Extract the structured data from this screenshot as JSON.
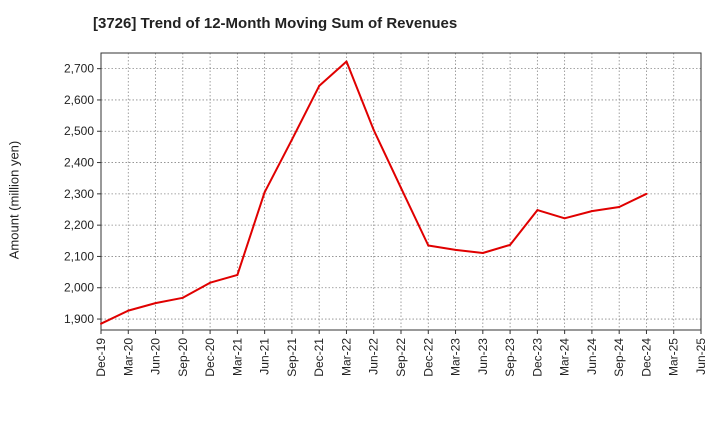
{
  "chart_data": {
    "type": "line",
    "title": "[3726]  Trend of 12-Month Moving Sum of Revenues",
    "xlabel": "",
    "ylabel": "Amount (million yen)",
    "ylim": [
      1865,
      2750
    ],
    "yticks": [
      1900,
      2000,
      2100,
      2200,
      2300,
      2400,
      2500,
      2600,
      2700
    ],
    "ytick_labels": [
      "1,900",
      "2,000",
      "2,100",
      "2,200",
      "2,300",
      "2,400",
      "2,500",
      "2,600",
      "2,700"
    ],
    "x_labels": [
      "Dec-19",
      "Mar-20",
      "Jun-20",
      "Sep-20",
      "Dec-20",
      "Mar-21",
      "Jun-21",
      "Sep-21",
      "Dec-21",
      "Mar-22",
      "Jun-22",
      "Sep-22",
      "Dec-22",
      "Mar-23",
      "Jun-23",
      "Sep-23",
      "Dec-23",
      "Mar-24",
      "Jun-24",
      "Sep-24",
      "Dec-24",
      "Mar-25",
      "Jun-25"
    ],
    "grid": true,
    "series": [
      {
        "color": "#e00000",
        "x": [
          "Dec-19",
          "Mar-20",
          "Jun-20",
          "Sep-20",
          "Dec-20",
          "Mar-21",
          "Jun-21",
          "Sep-21",
          "Dec-21",
          "Mar-22",
          "Jun-22",
          "Sep-22",
          "Dec-22",
          "Mar-23",
          "Jun-23",
          "Sep-23",
          "Dec-23",
          "Mar-24",
          "Jun-24",
          "Sep-24",
          "Dec-24"
        ],
        "values": [
          1885,
          1927,
          1951,
          1968,
          2016,
          2041,
          2305,
          2473,
          2645,
          2723,
          2504,
          2319,
          2135,
          2121,
          2111,
          2137,
          2248,
          2222,
          2245,
          2258,
          2300
        ]
      }
    ]
  }
}
